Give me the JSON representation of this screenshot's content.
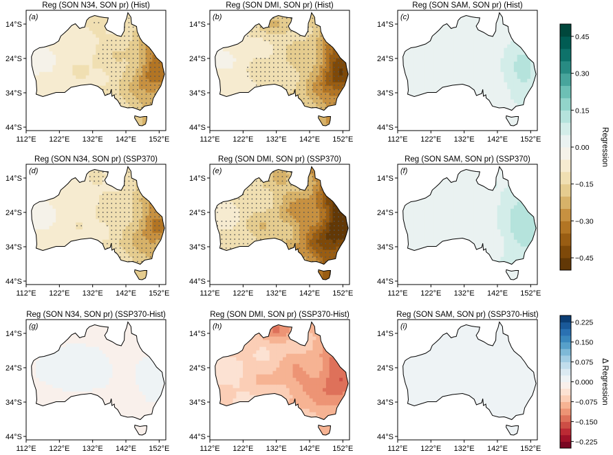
{
  "panels": [
    {
      "id": "a",
      "letter": "(a)",
      "title": "Reg (SON N34, SON pr) (Hist)",
      "field": "regression",
      "index": "N34",
      "period": "Hist",
      "strength": -0.18,
      "east_boost": -0.14,
      "stipple_density": 0.45
    },
    {
      "id": "b",
      "letter": "(b)",
      "title": "Reg (SON DMI, SON pr) (Hist)",
      "field": "regression",
      "index": "DMI",
      "period": "Hist",
      "strength": -0.22,
      "east_boost": -0.2,
      "stipple_density": 0.6
    },
    {
      "id": "c",
      "letter": "(c)",
      "title": "Reg (SON SAM, SON pr) (Hist)",
      "field": "regression",
      "index": "SAM",
      "period": "Hist",
      "strength": 0.04,
      "east_boost": 0.08,
      "stipple_density": 0.0
    },
    {
      "id": "d",
      "letter": "(d)",
      "title": "Reg (SON N34, SON pr) (SSP370)",
      "field": "regression",
      "index": "N34",
      "period": "SSP370",
      "strength": -0.17,
      "east_boost": -0.12,
      "stipple_density": 0.55
    },
    {
      "id": "e",
      "letter": "(e)",
      "title": "Reg (SON DMI, SON pr) (SSP370)",
      "field": "regression",
      "index": "DMI",
      "period": "SSP370",
      "strength": -0.34,
      "east_boost": -0.16,
      "stipple_density": 0.85
    },
    {
      "id": "f",
      "letter": "(f)",
      "title": "Reg (SON SAM, SON pr) (SSP370)",
      "field": "regression",
      "index": "SAM",
      "period": "SSP370",
      "strength": 0.05,
      "east_boost": 0.1,
      "stipple_density": 0.05
    },
    {
      "id": "g",
      "letter": "(g)",
      "title": "Reg (SON N34, SON pr) (SSP370-Hist)",
      "field": "difference",
      "index": "N34",
      "period": "SSP370-Hist",
      "strength": -0.005,
      "east_boost": 0.01,
      "stipple_density": 0.0
    },
    {
      "id": "h",
      "letter": "(h)",
      "title": "Reg (SON DMI, SON pr) (SSP370-Hist)",
      "field": "difference",
      "index": "DMI",
      "period": "SSP370-Hist",
      "strength": -0.09,
      "east_boost": -0.06,
      "stipple_density": 0.0
    },
    {
      "id": "i",
      "letter": "(i)",
      "title": "Reg (SON SAM, SON pr) (SSP370-Hist)",
      "field": "difference",
      "index": "SAM",
      "period": "SSP370-Hist",
      "strength": 0.01,
      "east_boost": 0.005,
      "stipple_density": 0.0
    }
  ],
  "axes": {
    "lon_ticks": [
      "112°E",
      "122°E",
      "132°E",
      "142°E",
      "152°E"
    ],
    "lon_values": [
      112,
      122,
      132,
      142,
      152
    ],
    "lat_ticks": [
      "14°S",
      "24°S",
      "34°S",
      "44°S"
    ],
    "lat_values": [
      -14,
      -24,
      -34,
      -44
    ],
    "lon_range": [
      112,
      154
    ],
    "lat_range": [
      -45,
      -10
    ]
  },
  "colorbars": [
    {
      "label": "Regression",
      "range": [
        -0.5,
        0.5
      ],
      "ticks": [
        "0.45",
        "0.30",
        "0.15",
        "0.00",
        "−0.15",
        "−0.30",
        "−0.45"
      ],
      "tick_values": [
        0.45,
        0.3,
        0.15,
        0.0,
        -0.15,
        -0.3,
        -0.45
      ],
      "colormap": "BrBG",
      "levels": 20
    },
    {
      "label": "Δ Regression",
      "range": [
        -0.25,
        0.25
      ],
      "ticks": [
        "0.225",
        "0.150",
        "0.075",
        "0.000",
        "−0.075",
        "−0.150",
        "−0.225"
      ],
      "tick_values": [
        0.225,
        0.15,
        0.075,
        0.0,
        -0.075,
        -0.15,
        -0.225
      ],
      "colormap": "RdBu",
      "levels": 20
    }
  ]
}
